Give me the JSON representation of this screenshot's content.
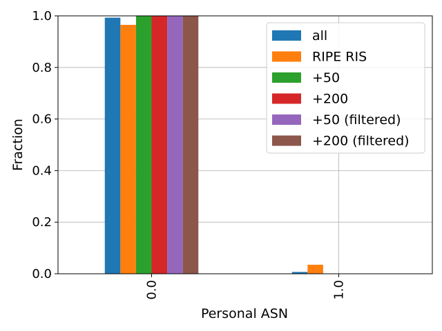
{
  "chart_data": {
    "type": "bar",
    "title": "",
    "xlabel": "Personal ASN",
    "ylabel": "Fraction",
    "categories": [
      "0.0",
      "1.0"
    ],
    "ylim": [
      0,
      1.0
    ],
    "yticks": [
      "0.0",
      "0.2",
      "0.4",
      "0.6",
      "0.8",
      "1.0"
    ],
    "grid": true,
    "legend_position": "top-right",
    "series": [
      {
        "name": "all",
        "color": "#1f77b4",
        "values": [
          0.993,
          0.007
        ]
      },
      {
        "name": "RIPE RIS",
        "color": "#ff7f0e",
        "values": [
          0.965,
          0.035
        ]
      },
      {
        "name": "+50",
        "color": "#2ca02c",
        "values": [
          1.0,
          0.0
        ]
      },
      {
        "name": "+200",
        "color": "#d62728",
        "values": [
          1.0,
          0.0
        ]
      },
      {
        "name": "+50 (filtered)",
        "color": "#9467bd",
        "values": [
          1.0,
          0.0
        ]
      },
      {
        "name": "+200 (filtered)",
        "color": "#8c564b",
        "values": [
          1.0,
          0.0
        ]
      }
    ]
  }
}
